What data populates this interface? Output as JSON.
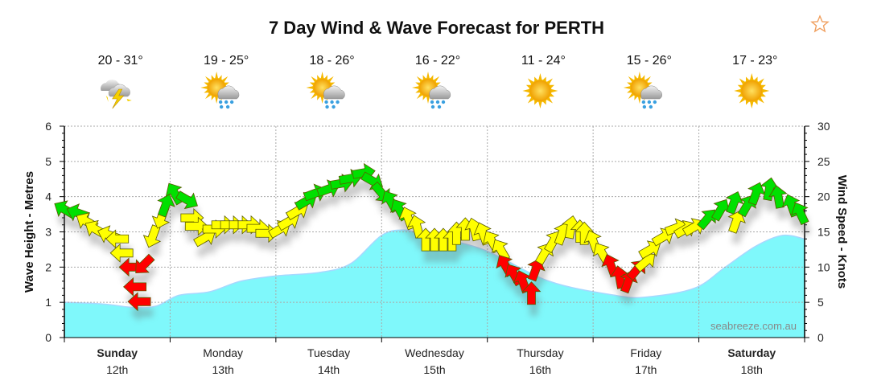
{
  "header": {
    "title": "7 Day Wind & Wave Forecast for PERTH",
    "favourite_icon": "star-outline-icon"
  },
  "watermark": "seabreeze.com.au",
  "colors": {
    "wave": "#7ff8fb",
    "wave_line": "#a6d8ff",
    "red": "#ff0000",
    "yellow": "#ffff00",
    "green": "#00e000",
    "star": "#f0a060"
  },
  "days": [
    {
      "day": "Sunday",
      "date": "12th",
      "bold": true,
      "temp": "20 - 31°",
      "icon": "storm"
    },
    {
      "day": "Monday",
      "date": "13th",
      "bold": false,
      "temp": "19 - 25°",
      "icon": "sun-cloud-rain"
    },
    {
      "day": "Tuesday",
      "date": "14th",
      "bold": false,
      "temp": "18 - 26°",
      "icon": "sun-cloud-rain"
    },
    {
      "day": "Wednesday",
      "date": "15th",
      "bold": false,
      "temp": "16 - 22°",
      "icon": "sun-cloud-rain"
    },
    {
      "day": "Thursday",
      "date": "16th",
      "bold": false,
      "temp": "11 - 24°",
      "icon": "sun"
    },
    {
      "day": "Friday",
      "date": "17th",
      "bold": false,
      "temp": "15 - 26°",
      "icon": "sun-cloud-rain"
    },
    {
      "day": "Saturday",
      "date": "18th",
      "bold": true,
      "temp": "17 - 23°",
      "icon": "sun"
    }
  ],
  "chart_data": {
    "type": "area+wind-arrows",
    "title": "7 Day Wind & Wave Forecast for PERTH",
    "ylabel_left": "Wave Height - Metres",
    "ylabel_right": "Wind Speed - Knots",
    "ylim_left": [
      0,
      6
    ],
    "ylim_right": [
      0,
      30
    ],
    "yticks_left": [
      "0",
      "1",
      "2",
      "3",
      "4",
      "5",
      "6"
    ],
    "yticks_right": [
      "0",
      "5",
      "10",
      "15",
      "20",
      "25",
      "30"
    ],
    "grid": true,
    "wave_height_m": [
      {
        "day": "Sunday",
        "hour": 0,
        "value": 1.0
      },
      {
        "day": "Sunday",
        "hour": 9,
        "value": 0.95
      },
      {
        "day": "Sunday",
        "hour": 16,
        "value": 0.85
      },
      {
        "day": "Sunday",
        "hour": 21,
        "value": 0.9
      },
      {
        "day": "Monday",
        "hour": 2,
        "value": 1.2
      },
      {
        "day": "Monday",
        "hour": 9,
        "value": 1.3
      },
      {
        "day": "Monday",
        "hour": 16,
        "value": 1.6
      },
      {
        "day": "Tuesday",
        "hour": 0,
        "value": 1.75
      },
      {
        "day": "Tuesday",
        "hour": 10,
        "value": 1.85
      },
      {
        "day": "Tuesday",
        "hour": 17,
        "value": 2.1
      },
      {
        "day": "Wednesday",
        "hour": 0,
        "value": 2.9
      },
      {
        "day": "Wednesday",
        "hour": 5,
        "value": 3.05
      },
      {
        "day": "Wednesday",
        "hour": 10,
        "value": 2.9
      },
      {
        "day": "Wednesday",
        "hour": 23,
        "value": 2.5
      },
      {
        "day": "Thursday",
        "hour": 14,
        "value": 1.6
      },
      {
        "day": "Friday",
        "hour": 5,
        "value": 1.2
      },
      {
        "day": "Friday",
        "hour": 12,
        "value": 1.15
      },
      {
        "day": "Friday",
        "hour": 23,
        "value": 1.4
      },
      {
        "day": "Saturday",
        "hour": 6,
        "value": 2.0
      },
      {
        "day": "Saturday",
        "hour": 13,
        "value": 2.6
      },
      {
        "day": "Saturday",
        "hour": 19,
        "value": 2.9
      },
      {
        "day": "Saturday",
        "hour": 24,
        "value": 2.8
      }
    ],
    "wind_note_fields": [
      "day",
      "hour",
      "knots",
      "arrow_bearing_deg",
      "level"
    ],
    "wind": [
      [
        "Sunday",
        0,
        18.2,
        300,
        "green"
      ],
      [
        "Sunday",
        3,
        17.7,
        290,
        "green"
      ],
      [
        "Sunday",
        5,
        16.5,
        300,
        "yellow"
      ],
      [
        "Sunday",
        7,
        15.4,
        300,
        "yellow"
      ],
      [
        "Sunday",
        10,
        14.6,
        290,
        "yellow"
      ],
      [
        "Sunday",
        12,
        14.0,
        270,
        "yellow"
      ],
      [
        "Sunday",
        13,
        12.0,
        270,
        "yellow"
      ],
      [
        "Sunday",
        15,
        10.0,
        270,
        "red"
      ],
      [
        "Sunday",
        18,
        10.3,
        225,
        "red"
      ],
      [
        "Sunday",
        16,
        7.2,
        270,
        "red"
      ],
      [
        "Sunday",
        17,
        5.1,
        270,
        "red"
      ],
      [
        "Sunday",
        20,
        14.3,
        200,
        "yellow"
      ],
      [
        "Sunday",
        22,
        17.0,
        200,
        "yellow"
      ],
      [
        "Sunday",
        23,
        18.8,
        20,
        "green"
      ],
      [
        "Monday",
        1,
        20.5,
        330,
        "green"
      ],
      [
        "Monday",
        4,
        19.5,
        120,
        "green"
      ],
      [
        "Monday",
        5,
        17.0,
        90,
        "yellow"
      ],
      [
        "Monday",
        6,
        15.8,
        90,
        "yellow"
      ],
      [
        "Monday",
        8,
        14.2,
        60,
        "yellow"
      ],
      [
        "Monday",
        10,
        15.4,
        90,
        "yellow"
      ],
      [
        "Monday",
        12,
        16.0,
        90,
        "yellow"
      ],
      [
        "Monday",
        14,
        16.0,
        90,
        "yellow"
      ],
      [
        "Monday",
        16,
        16.0,
        90,
        "yellow"
      ],
      [
        "Monday",
        18,
        16.0,
        90,
        "yellow"
      ],
      [
        "Monday",
        20,
        15.5,
        90,
        "yellow"
      ],
      [
        "Monday",
        22,
        14.8,
        90,
        "yellow"
      ],
      [
        "Tuesday",
        1,
        15.4,
        60,
        "yellow"
      ],
      [
        "Tuesday",
        3,
        16.5,
        60,
        "yellow"
      ],
      [
        "Tuesday",
        5,
        18.0,
        60,
        "yellow"
      ],
      [
        "Tuesday",
        7,
        19.4,
        60,
        "green"
      ],
      [
        "Tuesday",
        9,
        20.5,
        70,
        "green"
      ],
      [
        "Tuesday",
        12,
        21.1,
        70,
        "green"
      ],
      [
        "Tuesday",
        15,
        21.9,
        80,
        "green"
      ],
      [
        "Tuesday",
        17,
        22.6,
        80,
        "green"
      ],
      [
        "Tuesday",
        20,
        23.4,
        80,
        "green"
      ],
      [
        "Tuesday",
        22,
        22.2,
        120,
        "green"
      ],
      [
        "Wednesday",
        0,
        20.5,
        140,
        "green"
      ],
      [
        "Wednesday",
        2,
        19.4,
        330,
        "green"
      ],
      [
        "Wednesday",
        4,
        18.2,
        330,
        "green"
      ],
      [
        "Wednesday",
        6,
        17.0,
        340,
        "yellow"
      ],
      [
        "Wednesday",
        8,
        15.8,
        345,
        "yellow"
      ],
      [
        "Wednesday",
        10,
        13.9,
        0,
        "yellow"
      ],
      [
        "Wednesday",
        12,
        13.9,
        0,
        "yellow"
      ],
      [
        "Wednesday",
        14,
        13.9,
        0,
        "yellow"
      ],
      [
        "Wednesday",
        16,
        13.9,
        0,
        "yellow"
      ],
      [
        "Wednesday",
        17,
        14.8,
        0,
        "yellow"
      ],
      [
        "Wednesday",
        19,
        15.4,
        0,
        "yellow"
      ],
      [
        "Wednesday",
        21,
        15.4,
        345,
        "yellow"
      ],
      [
        "Wednesday",
        23,
        14.8,
        340,
        "yellow"
      ],
      [
        "Thursday",
        1,
        13.7,
        330,
        "yellow"
      ],
      [
        "Thursday",
        3,
        12.5,
        330,
        "yellow"
      ],
      [
        "Thursday",
        4,
        10.3,
        330,
        "red"
      ],
      [
        "Thursday",
        6,
        9.0,
        330,
        "red"
      ],
      [
        "Thursday",
        8,
        8.0,
        340,
        "red"
      ],
      [
        "Thursday",
        10,
        6.3,
        0,
        "red"
      ],
      [
        "Thursday",
        11,
        9.7,
        20,
        "red"
      ],
      [
        "Thursday",
        13,
        12.0,
        30,
        "yellow"
      ],
      [
        "Thursday",
        15,
        13.7,
        30,
        "yellow"
      ],
      [
        "Thursday",
        17,
        14.8,
        20,
        "yellow"
      ],
      [
        "Thursday",
        19,
        15.7,
        10,
        "yellow"
      ],
      [
        "Thursday",
        21,
        15.1,
        0,
        "yellow"
      ],
      [
        "Thursday",
        22,
        14.8,
        0,
        "yellow"
      ],
      [
        "Friday",
        0,
        13.7,
        340,
        "yellow"
      ],
      [
        "Friday",
        2,
        12.0,
        330,
        "yellow"
      ],
      [
        "Friday",
        4,
        10.3,
        340,
        "red"
      ],
      [
        "Friday",
        6,
        8.6,
        350,
        "red"
      ],
      [
        "Friday",
        8,
        8.0,
        20,
        "red"
      ],
      [
        "Friday",
        10,
        9.7,
        40,
        "red"
      ],
      [
        "Friday",
        12,
        10.8,
        50,
        "yellow"
      ],
      [
        "Friday",
        13,
        12.5,
        60,
        "yellow"
      ],
      [
        "Friday",
        16,
        14.3,
        60,
        "yellow"
      ],
      [
        "Friday",
        19,
        15.6,
        70,
        "yellow"
      ],
      [
        "Friday",
        21,
        15.4,
        60,
        "yellow"
      ],
      [
        "Friday",
        23,
        15.7,
        60,
        "yellow"
      ],
      [
        "Saturday",
        2,
        16.9,
        40,
        "green"
      ],
      [
        "Saturday",
        5,
        18.2,
        30,
        "green"
      ],
      [
        "Saturday",
        8,
        19.2,
        20,
        "green"
      ],
      [
        "Saturday",
        8.5,
        16.5,
        20,
        "yellow"
      ],
      [
        "Saturday",
        11,
        18.8,
        30,
        "green"
      ],
      [
        "Saturday",
        13,
        20.5,
        20,
        "green"
      ],
      [
        "Saturday",
        16,
        21.1,
        10,
        "green"
      ],
      [
        "Saturday",
        18,
        20.0,
        350,
        "green"
      ],
      [
        "Saturday",
        21,
        18.8,
        340,
        "green"
      ],
      [
        "Saturday",
        23,
        17.7,
        335,
        "green"
      ]
    ]
  }
}
